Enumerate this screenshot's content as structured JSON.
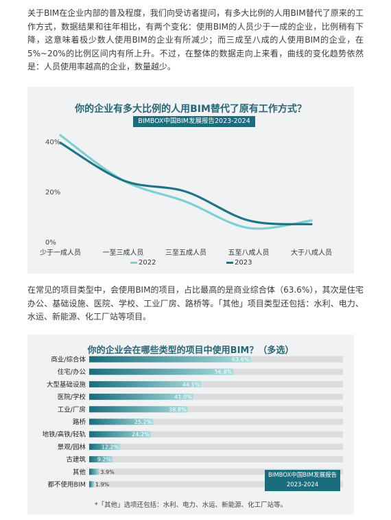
{
  "para1": "关于BIM在企业内部的普及程度，我们向受访者提问，有多大比例的人用BIM替代了原来的工作方式，数据结果和往年相比，有两个变化：使用BIM的人员少于一成的企业，比例稍有下降，这意味着极少数人使用BIM的企业有所减少；而三成至八成的人使用BIM的企业，在5%~20%的比例区间内有所上升。不过，在整体的数据走向上来看，曲线的变化趋势依然是：人员使用率越高的企业，数量越少。",
  "para2": "在常见的项目类型中，会使用BIM的项目，占比最高的是商业综合体（63.6%），其次是住宅办公、基础设施、医院、学校、工业厂房、路桥等。「其他」项目类型还包括：水利、电力、水运、新能源、化工厂站等项目。",
  "chart_data": [
    {
      "type": "line",
      "title": "你的企业有多大比例的人用BIM替代了原有工作方式？",
      "subtitle": "BIMBOX中国BIM发展报告2023-2024",
      "categories": [
        "少于一成人员",
        "一至三成人员",
        "三至五成人员",
        "五至八成人员",
        "大于八成人员"
      ],
      "y_ticks": [
        "0%",
        "20%",
        "40%"
      ],
      "ylim": [
        0,
        40
      ],
      "legend_position": "bottom",
      "grid": false,
      "series": [
        {
          "name": "2022",
          "color": "#7ecfd1",
          "values": [
            42.5,
            24.5,
            16,
            5.5,
            8.5
          ]
        },
        {
          "name": "2023",
          "color": "#1f7585",
          "values": [
            39.5,
            24.5,
            20,
            8.5,
            7.0
          ]
        }
      ]
    },
    {
      "type": "bar",
      "orientation": "horizontal",
      "title": "你的企业会在哪些类型的项目中使用BIM？（多选）",
      "xlim": [
        0,
        100
      ],
      "categories": [
        "商业/综合体",
        "住宅/办公",
        "大型基础设施",
        "医院/学校",
        "工业/厂房",
        "路桥",
        "地铁/高铁/轻轨",
        "景观/园林",
        "古建筑",
        "其他",
        "都不使用BIM"
      ],
      "values": [
        63.6,
        56.8,
        44.1,
        41.0,
        38.8,
        25.2,
        24.2,
        12.2,
        9.2,
        3.9,
        1.9
      ],
      "value_labels": [
        "63.6%",
        "56.8%",
        "44.1%",
        "41.0%",
        "38.8%",
        "25.2%",
        "24.2%",
        "12.2%",
        "9.2%",
        "3.9%",
        "1.9%"
      ],
      "bar_color_start": "#1a6d7c",
      "bar_color_end": "#a9dcde",
      "track_color": "#dcdcdc",
      "source_line1": "BIMBOX中国BIM发展报告",
      "source_line2": "2023-2024",
      "footnote": "*「其他」选项还包括：水利、电力、水运、新能源、化工厂站等。"
    }
  ]
}
